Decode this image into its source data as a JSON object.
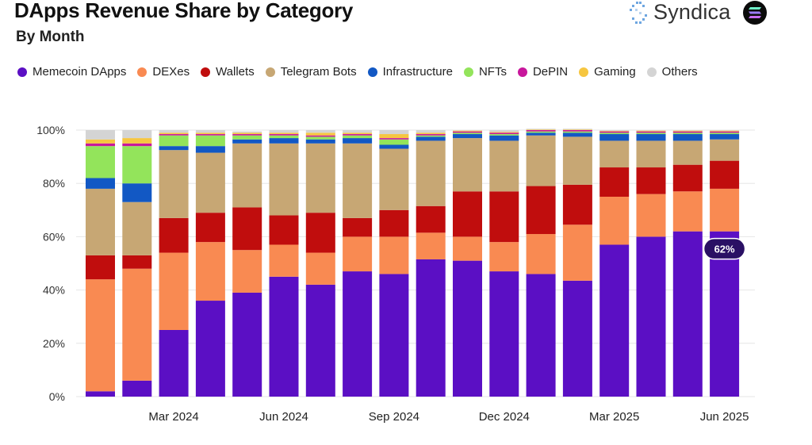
{
  "header": {
    "title": "DApps Revenue Share by Category",
    "subtitle": "By Month",
    "brand": "Syndica",
    "brand_icon": "syndica-logo-icon",
    "token_icon": "solana-logo-icon"
  },
  "chart_data": {
    "type": "bar",
    "stacked": true,
    "title": "DApps Revenue Share by Category",
    "subtitle": "By Month",
    "xlabel": "",
    "ylabel": "",
    "ylim": [
      0,
      100
    ],
    "y_ticks": [
      "0%",
      "20%",
      "40%",
      "60%",
      "80%",
      "100%"
    ],
    "x_tick_labels": [
      "",
      "",
      "Mar 2024",
      "",
      "",
      "Jun 2024",
      "",
      "",
      "Sep 2024",
      "",
      "",
      "Dec 2024",
      "",
      "",
      "Mar 2025",
      "",
      "",
      "Jun 2025"
    ],
    "categories": [
      "Jan 2024",
      "Feb 2024",
      "Mar 2024",
      "Apr 2024",
      "May 2024",
      "Jun 2024",
      "Jul 2024",
      "Aug 2024",
      "Sep 2024",
      "Oct 2024",
      "Nov 2024",
      "Dec 2024",
      "Jan 2025",
      "Feb 2025",
      "Mar 2025",
      "Apr 2025",
      "May 2025",
      "Jun 2025"
    ],
    "grid": true,
    "legend_position": "top",
    "series": [
      {
        "name": "Memecoin DApps",
        "color": "#5b0fc4",
        "values": [
          2,
          6,
          25,
          36,
          39,
          45,
          42,
          47,
          46,
          51.5,
          51,
          47,
          46,
          43.5,
          57,
          60,
          62,
          62
        ]
      },
      {
        "name": "DEXes",
        "color": "#f98a52",
        "values": [
          42,
          42,
          29,
          22,
          16,
          12,
          12,
          13,
          14,
          10,
          9,
          11,
          15,
          21,
          18,
          16,
          15,
          16
        ]
      },
      {
        "name": "Wallets",
        "color": "#c00d0d",
        "values": [
          9,
          5,
          13,
          11,
          16,
          11,
          15,
          7,
          10,
          10,
          17,
          19,
          18,
          15,
          11,
          10,
          10,
          10.5
        ]
      },
      {
        "name": "Telegram Bots",
        "color": "#c7a774",
        "values": [
          25,
          20,
          25.5,
          22.5,
          24,
          27,
          26,
          28,
          23,
          24.5,
          20,
          19,
          19,
          18,
          10,
          10,
          9,
          8
        ]
      },
      {
        "name": "Infrastructure",
        "color": "#1258c4",
        "values": [
          4,
          7,
          1.5,
          2.5,
          1.5,
          2,
          1.5,
          2,
          1.5,
          1.5,
          1.5,
          2,
          1,
          1.5,
          2.5,
          2.5,
          2.5,
          2
        ]
      },
      {
        "name": "NFTs",
        "color": "#93e45b",
        "values": [
          12,
          14,
          4,
          4,
          1.5,
          1,
          1,
          1,
          2,
          0.5,
          0.5,
          0.5,
          0.5,
          0.5,
          0.5,
          0.5,
          0.5,
          0.5
        ]
      },
      {
        "name": "DePIN",
        "color": "#c8179c",
        "values": [
          1,
          1,
          0.5,
          0.5,
          0.5,
          0.5,
          0.5,
          0.5,
          0.5,
          0.5,
          0.5,
          0.5,
          0.5,
          0.5,
          0.5,
          0.5,
          0.5,
          0.5
        ]
      },
      {
        "name": "Gaming",
        "color": "#f6c640",
        "values": [
          1.5,
          2,
          0.5,
          0.5,
          0.5,
          0.5,
          1,
          0.5,
          1.5,
          0.5,
          0.3,
          0.3,
          0.2,
          0.2,
          0.2,
          0.3,
          0.3,
          0.3
        ]
      },
      {
        "name": "Others",
        "color": "#d4d4d4",
        "values": [
          3.5,
          3,
          1,
          1,
          0.5,
          1,
          1,
          1,
          1.5,
          1,
          0.2,
          0.7,
          0.3,
          0.3,
          0.3,
          0.2,
          0.2,
          0.2
        ]
      }
    ],
    "annotation": {
      "category": "Jun 2025",
      "series": "Memecoin DApps",
      "label": "62%"
    }
  }
}
